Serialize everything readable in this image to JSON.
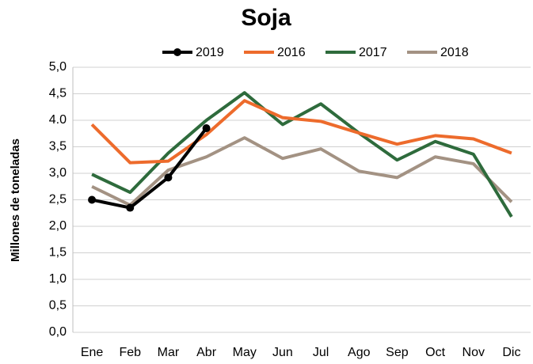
{
  "chart_data": {
    "type": "line",
    "title": "Soja",
    "y_label": "Millones de toneladas",
    "categories": [
      "Ene",
      "Feb",
      "Mar",
      "Abr",
      "May",
      "Jun",
      "Jul",
      "Ago",
      "Sep",
      "Oct",
      "Nov",
      "Dic"
    ],
    "series": [
      {
        "name": "2019",
        "color": "#000000",
        "marker": true,
        "values": [
          2.5,
          2.35,
          2.92,
          3.85,
          null,
          null,
          null,
          null,
          null,
          null,
          null,
          null
        ]
      },
      {
        "name": "2016",
        "color": "#ed6b2c",
        "values": [
          3.92,
          3.2,
          3.23,
          3.73,
          4.37,
          4.05,
          3.98,
          3.76,
          3.55,
          3.71,
          3.65,
          3.38
        ]
      },
      {
        "name": "2017",
        "color": "#2e6b3c",
        "values": [
          2.98,
          2.64,
          3.38,
          4.0,
          4.52,
          3.92,
          4.31,
          3.76,
          3.25,
          3.6,
          3.36,
          2.18
        ]
      },
      {
        "name": "2018",
        "color": "#a39283",
        "values": [
          2.75,
          2.4,
          3.06,
          3.31,
          3.67,
          3.28,
          3.46,
          3.04,
          2.92,
          3.31,
          3.18,
          2.46
        ]
      }
    ],
    "ylim": [
      0,
      5
    ],
    "yticks": [
      {
        "value": 0,
        "label": "0,0"
      },
      {
        "value": 0.5,
        "label": "0,5"
      },
      {
        "value": 1,
        "label": "1,0"
      },
      {
        "value": 1.5,
        "label": "1,5"
      },
      {
        "value": 2,
        "label": "2,0"
      },
      {
        "value": 2.5,
        "label": "2,5"
      },
      {
        "value": 3,
        "label": "3,0"
      },
      {
        "value": 3.5,
        "label": "3,5"
      },
      {
        "value": 4,
        "label": "4.0"
      },
      {
        "value": 4.5,
        "label": "4,5"
      },
      {
        "value": 5,
        "label": "5,0"
      }
    ],
    "grid": true,
    "legend": "top"
  }
}
